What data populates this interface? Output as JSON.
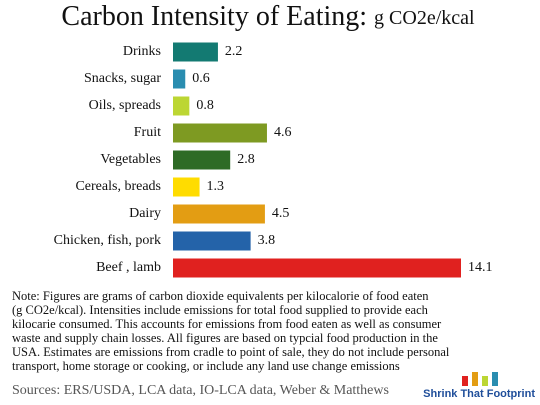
{
  "chart_data": {
    "type": "bar",
    "orientation": "horizontal",
    "title": "Carbon Intensity of Eating:",
    "subtitle": "g CO2e/kcal",
    "categories": [
      "Drinks",
      "Snacks, sugar",
      "Oils, spreads",
      "Fruit",
      "Vegetables",
      "Cereals, breads",
      "Dairy",
      "Chicken, fish, pork",
      "Beef , lamb"
    ],
    "values": [
      2.2,
      0.6,
      0.8,
      4.6,
      2.8,
      1.3,
      4.5,
      3.8,
      14.1
    ],
    "colors": [
      "#137a72",
      "#2a8db0",
      "#bcd633",
      "#7e9a22",
      "#2e6b25",
      "#ffdc00",
      "#e39d13",
      "#2463a9",
      "#e0211f"
    ],
    "note": [
      "Note: Figures are grams of carbon dioxide equivalents per kilocalorie of food eaten",
      " (g CO2e/kcal).  Intensities include emissions for total food supplied to provide each",
      "kilocarie consumed.  This accounts for emissions from food eaten as well as consumer",
      "waste and supply chain losses.  All figures are based on typcial food production in the",
      "USA.  Estimates are emissions from cradle to point of sale, they do not include personal",
      "transport, home storage or cooking, or include any land use change emissions"
    ],
    "sources": "Sources:  ERS/USDA, LCA data, IO-LCA data, Weber & Matthews",
    "logo": "Shrink That Footprint"
  }
}
